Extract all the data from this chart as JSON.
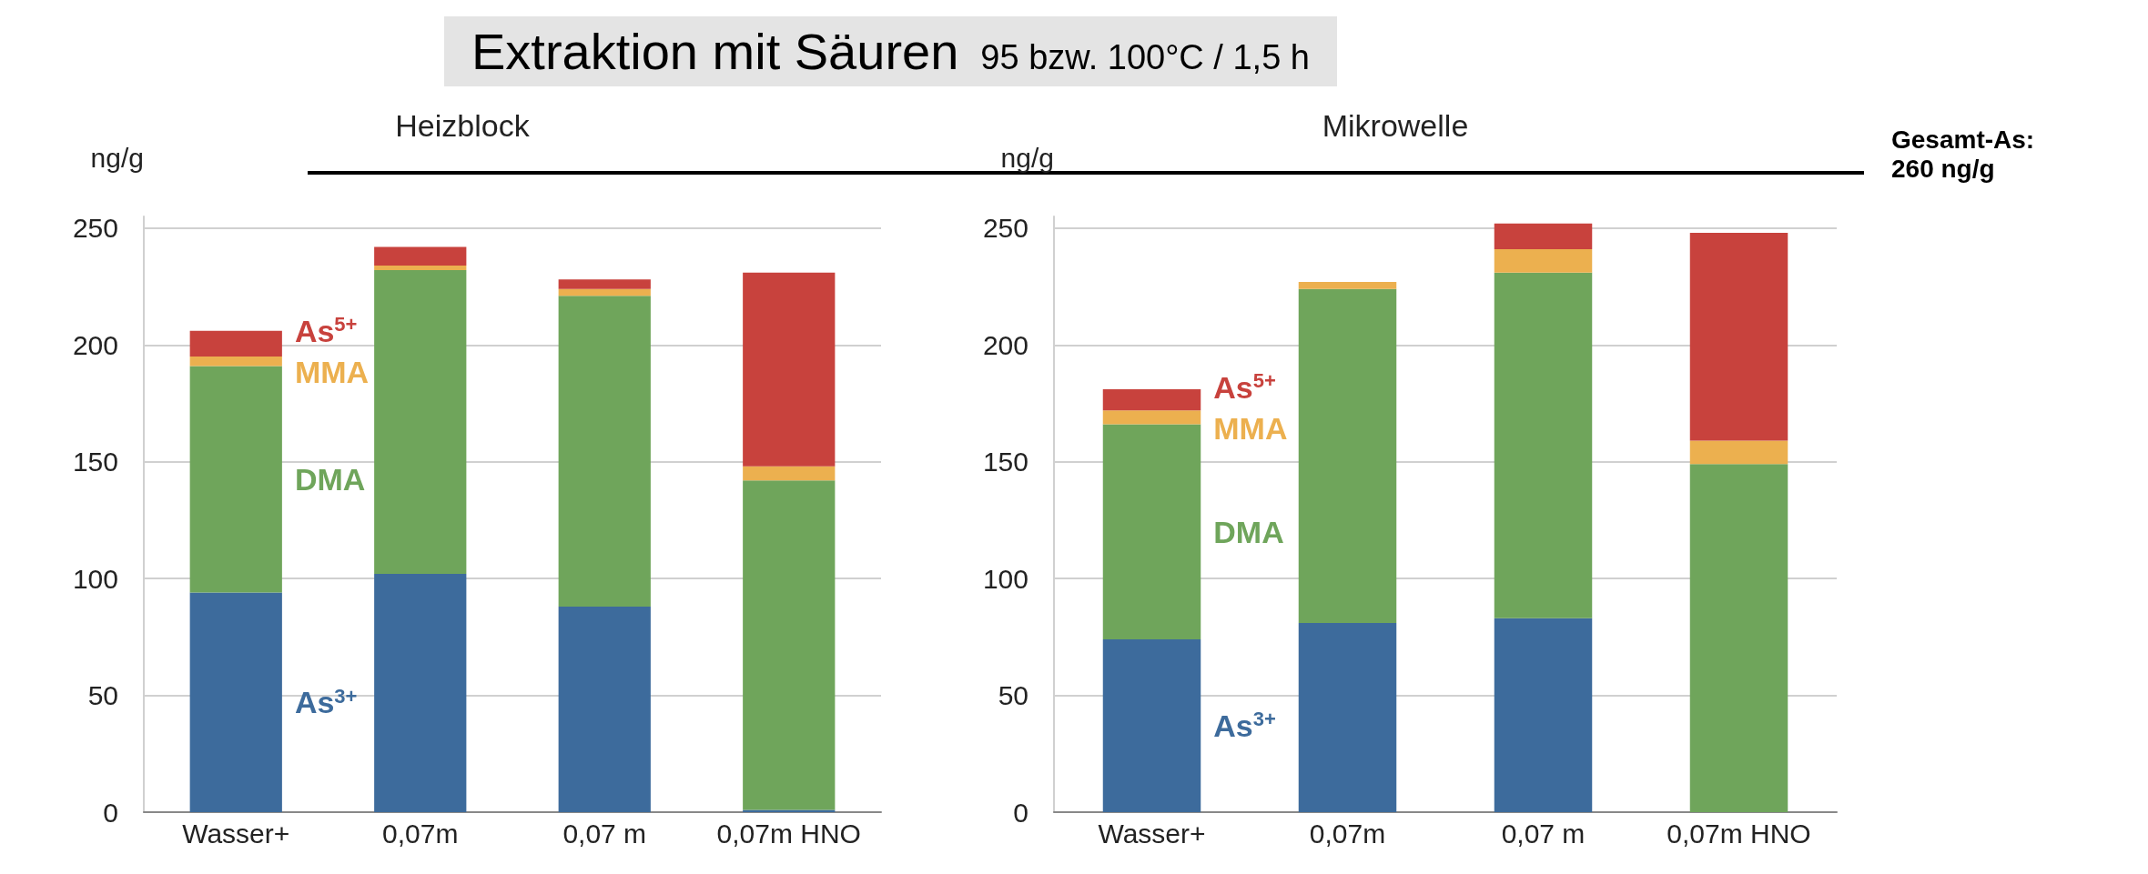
{
  "chart_data": [
    {
      "type": "other",
      "title": "Extraktion mit Säuren",
      "subtitle": "95 bzw. 100°C / 1,5 h"
    },
    {
      "type": "bar",
      "title": "Heizblock",
      "ylabel": "ng/g",
      "stacked": true,
      "grid": "y",
      "legend": false,
      "categories": [
        "Wasser+",
        "0,07m",
        "0,07 m",
        "0,07m HNO"
      ],
      "ylim": [
        0,
        255
      ],
      "yticks": [
        0,
        50,
        100,
        150,
        200,
        250
      ],
      "series": [
        {
          "name": "As$^{3+}$",
          "color": "#3d6b9c",
          "values": [
            94,
            102,
            88,
            1
          ]
        },
        {
          "name": "DMA",
          "color": "#6fa55b",
          "values": [
            97,
            130,
            133,
            141
          ]
        },
        {
          "name": "MMA",
          "color": "#ecb04f",
          "values": [
            4,
            2,
            3,
            6
          ]
        },
        {
          "name": "As$^{5+}$",
          "color": "#c8423d",
          "values": [
            11,
            8,
            4,
            83
          ]
        }
      ]
    },
    {
      "type": "bar",
      "title": "Mikrowelle",
      "ylabel": "ng/g",
      "stacked": true,
      "grid": "y",
      "legend": false,
      "categories": [
        "Wasser+",
        "0,07m",
        "0,07 m",
        "0,07m HNO"
      ],
      "ylim": [
        0,
        255
      ],
      "yticks": [
        0,
        50,
        100,
        150,
        200,
        250
      ],
      "annotations": [
        "Gesamt-As: 260 ng/g"
      ],
      "series": [
        {
          "name": "As$^{3+}$",
          "color": "#3d6b9c",
          "values": [
            74,
            81,
            83,
            0
          ]
        },
        {
          "name": "DMA",
          "color": "#6fa55b",
          "values": [
            92,
            143,
            148,
            149
          ]
        },
        {
          "name": "MMA",
          "color": "#ecb04f",
          "values": [
            6,
            3,
            10,
            10
          ]
        },
        {
          "name": "As$^{5+}$",
          "color": "#c8423d",
          "values": [
            9,
            0,
            11,
            89
          ]
        }
      ]
    }
  ]
}
